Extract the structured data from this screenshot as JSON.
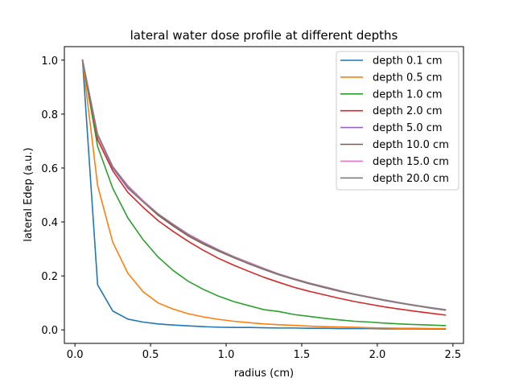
{
  "chart_data": {
    "type": "line",
    "title": "lateral water dose profile at different depths",
    "xlabel": "radius (cm)",
    "ylabel": "lateral Edep (a.u.)",
    "xlim": [
      -0.07,
      2.57
    ],
    "ylim": [
      -0.05,
      1.05
    ],
    "xticks": [
      0.0,
      0.5,
      1.0,
      1.5,
      2.0,
      2.5
    ],
    "xtick_labels": [
      "0.0",
      "0.5",
      "1.0",
      "1.5",
      "2.0",
      "2.5"
    ],
    "yticks": [
      0.0,
      0.2,
      0.4,
      0.6,
      0.8,
      1.0
    ],
    "ytick_labels": [
      "0.0",
      "0.2",
      "0.4",
      "0.6",
      "0.8",
      "1.0"
    ],
    "grid": false,
    "legend_position": "top-right",
    "x": [
      0.05,
      0.15,
      0.25,
      0.35,
      0.45,
      0.55,
      0.65,
      0.75,
      0.85,
      0.95,
      1.05,
      1.15,
      1.25,
      1.35,
      1.45,
      1.55,
      1.65,
      1.75,
      1.85,
      1.95,
      2.05,
      2.15,
      2.25,
      2.35,
      2.45
    ],
    "series": [
      {
        "name": "depth 0.1 cm",
        "color": "#1f77b4",
        "values": [
          1.0,
          0.167,
          0.07,
          0.04,
          0.029,
          0.022,
          0.018,
          0.015,
          0.012,
          0.01,
          0.009,
          0.009,
          0.008,
          0.007,
          0.007,
          0.006,
          0.006,
          0.005,
          0.005,
          0.005,
          0.004,
          0.004,
          0.004,
          0.003,
          0.003
        ]
      },
      {
        "name": "depth 0.5 cm",
        "color": "#ff7f0e",
        "values": [
          1.0,
          0.535,
          0.325,
          0.21,
          0.142,
          0.1,
          0.077,
          0.06,
          0.048,
          0.039,
          0.032,
          0.027,
          0.022,
          0.019,
          0.017,
          0.014,
          0.012,
          0.011,
          0.01,
          0.008,
          0.007,
          0.006,
          0.006,
          0.005,
          0.005
        ]
      },
      {
        "name": "depth 1.0 cm",
        "color": "#2ca02c",
        "values": [
          1.0,
          0.68,
          0.525,
          0.415,
          0.335,
          0.27,
          0.22,
          0.18,
          0.15,
          0.125,
          0.105,
          0.09,
          0.075,
          0.068,
          0.057,
          0.05,
          0.043,
          0.037,
          0.032,
          0.029,
          0.025,
          0.022,
          0.02,
          0.018,
          0.016
        ]
      },
      {
        "name": "depth 2.0 cm",
        "color": "#d62728",
        "values": [
          1.0,
          0.705,
          0.59,
          0.51,
          0.455,
          0.405,
          0.365,
          0.328,
          0.295,
          0.265,
          0.24,
          0.217,
          0.195,
          0.176,
          0.158,
          0.143,
          0.13,
          0.117,
          0.105,
          0.095,
          0.085,
          0.077,
          0.069,
          0.062,
          0.055
        ]
      },
      {
        "name": "depth 5.0 cm",
        "color": "#9467bd",
        "values": [
          1.0,
          0.72,
          0.6,
          0.525,
          0.475,
          0.43,
          0.39,
          0.352,
          0.322,
          0.295,
          0.27,
          0.245,
          0.225,
          0.205,
          0.188,
          0.172,
          0.158,
          0.145,
          0.132,
          0.121,
          0.11,
          0.1,
          0.091,
          0.083,
          0.075
        ]
      },
      {
        "name": "depth 10.0 cm",
        "color": "#8c564b",
        "values": [
          1.0,
          0.72,
          0.605,
          0.53,
          0.475,
          0.425,
          0.385,
          0.348,
          0.318,
          0.292,
          0.268,
          0.245,
          0.224,
          0.204,
          0.187,
          0.171,
          0.157,
          0.143,
          0.131,
          0.12,
          0.109,
          0.099,
          0.09,
          0.081,
          0.073
        ]
      },
      {
        "name": "depth 15.0 cm",
        "color": "#e377c2",
        "values": [
          1.0,
          0.72,
          0.605,
          0.535,
          0.48,
          0.43,
          0.392,
          0.355,
          0.325,
          0.297,
          0.272,
          0.25,
          0.228,
          0.207,
          0.19,
          0.174,
          0.16,
          0.146,
          0.133,
          0.122,
          0.111,
          0.101,
          0.091,
          0.082,
          0.074
        ]
      },
      {
        "name": "depth 20.0 cm",
        "color": "#7f7f7f",
        "values": [
          1.0,
          0.725,
          0.605,
          0.53,
          0.475,
          0.43,
          0.39,
          0.352,
          0.322,
          0.295,
          0.27,
          0.247,
          0.226,
          0.206,
          0.189,
          0.173,
          0.159,
          0.145,
          0.132,
          0.121,
          0.11,
          0.1,
          0.091,
          0.082,
          0.074
        ]
      }
    ]
  }
}
